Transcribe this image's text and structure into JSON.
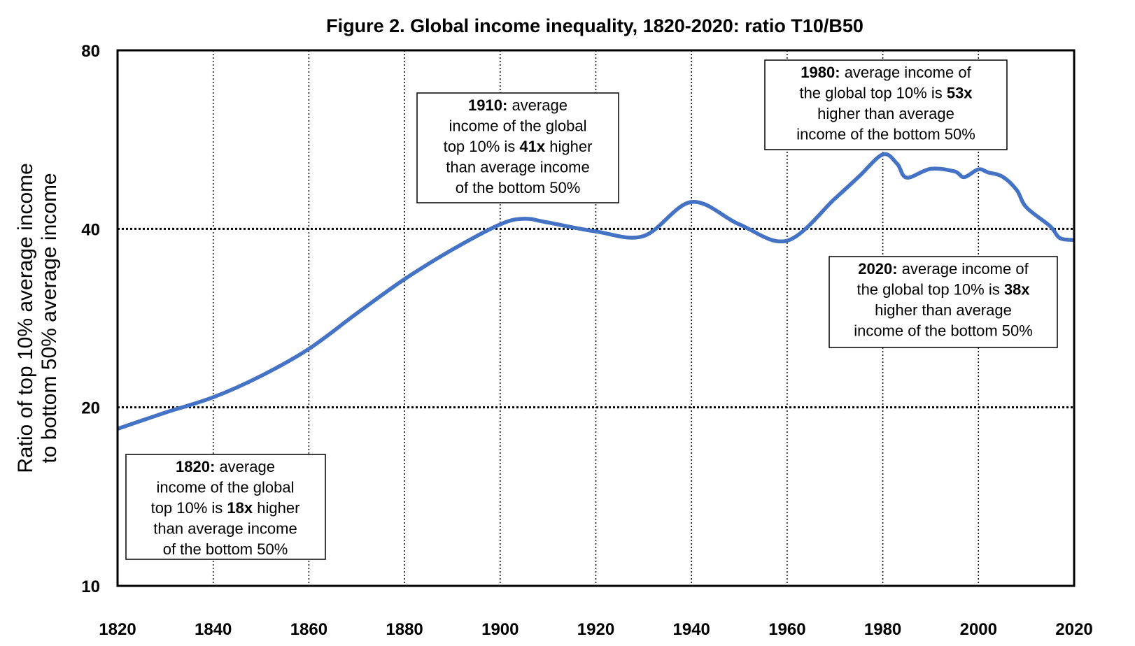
{
  "chart_data": {
    "type": "line",
    "title": "Figure 2. Global income inequality, 1820-2020: ratio T10/B50",
    "xlabel": "",
    "ylabel_lines": [
      "Ratio of top 10% average income",
      "to bottom 50% average income"
    ],
    "y_scale": "log",
    "xlim": [
      1820,
      2020
    ],
    "ylim": [
      10,
      80
    ],
    "x_ticks": [
      1820,
      1840,
      1860,
      1880,
      1900,
      1920,
      1940,
      1960,
      1980,
      2000,
      2020
    ],
    "y_ticks": [
      10,
      20,
      40,
      80
    ],
    "grid": true,
    "line_color": "#4472C4",
    "series": [
      {
        "name": "T10/B50 ratio",
        "x": [
          1820,
          1830,
          1840,
          1850,
          1860,
          1870,
          1880,
          1890,
          1900,
          1905,
          1910,
          1920,
          1930,
          1940,
          1950,
          1960,
          1970,
          1975,
          1980,
          1983,
          1985,
          1990,
          1995,
          1997,
          2000,
          2002,
          2005,
          2008,
          2010,
          2015,
          2017,
          2020
        ],
        "y": [
          18.4,
          19.6,
          20.8,
          22.6,
          25.1,
          28.8,
          32.9,
          36.9,
          40.7,
          41.6,
          41.0,
          39.6,
          38.9,
          44.4,
          40.7,
          38.2,
          45.0,
          49.0,
          53.4,
          51.5,
          48.8,
          50.5,
          50.0,
          48.9,
          50.4,
          49.8,
          49.0,
          46.5,
          43.5,
          40.4,
          38.6,
          38.3
        ]
      }
    ],
    "annotations": [
      {
        "year": 1910,
        "lines": [
          [
            {
              "t": "1910:",
              "b": true
            },
            {
              "t": " average",
              "b": false
            }
          ],
          [
            {
              "t": "income of the global",
              "b": false
            }
          ],
          [
            {
              "t": "top 10% is ",
              "b": false
            },
            {
              "t": "41x",
              "b": true
            },
            {
              "t": " higher",
              "b": false
            }
          ],
          [
            {
              "t": "than average income",
              "b": false
            }
          ],
          [
            {
              "t": "of the bottom 50%",
              "b": false
            }
          ]
        ]
      },
      {
        "year": 1980,
        "lines": [
          [
            {
              "t": "1980:",
              "b": true
            },
            {
              "t": " average income of",
              "b": false
            }
          ],
          [
            {
              "t": "the global top 10% is ",
              "b": false
            },
            {
              "t": "53x",
              "b": true
            }
          ],
          [
            {
              "t": "higher than average",
              "b": false
            }
          ],
          [
            {
              "t": "income of the bottom 50%",
              "b": false
            }
          ]
        ]
      },
      {
        "year": 2020,
        "lines": [
          [
            {
              "t": "2020:",
              "b": true
            },
            {
              "t": " average income of",
              "b": false
            }
          ],
          [
            {
              "t": "the global top 10% is ",
              "b": false
            },
            {
              "t": "38x",
              "b": true
            }
          ],
          [
            {
              "t": "higher than average",
              "b": false
            }
          ],
          [
            {
              "t": "income of the bottom 50%",
              "b": false
            }
          ]
        ]
      },
      {
        "year": 1820,
        "lines": [
          [
            {
              "t": "1820:",
              "b": true
            },
            {
              "t": " average",
              "b": false
            }
          ],
          [
            {
              "t": "income of the global",
              "b": false
            }
          ],
          [
            {
              "t": "top 10% is ",
              "b": false
            },
            {
              "t": "18x",
              "b": true
            },
            {
              "t": " higher",
              "b": false
            }
          ],
          [
            {
              "t": "than average income",
              "b": false
            }
          ],
          [
            {
              "t": "of the bottom 50%",
              "b": false
            }
          ]
        ]
      }
    ]
  }
}
